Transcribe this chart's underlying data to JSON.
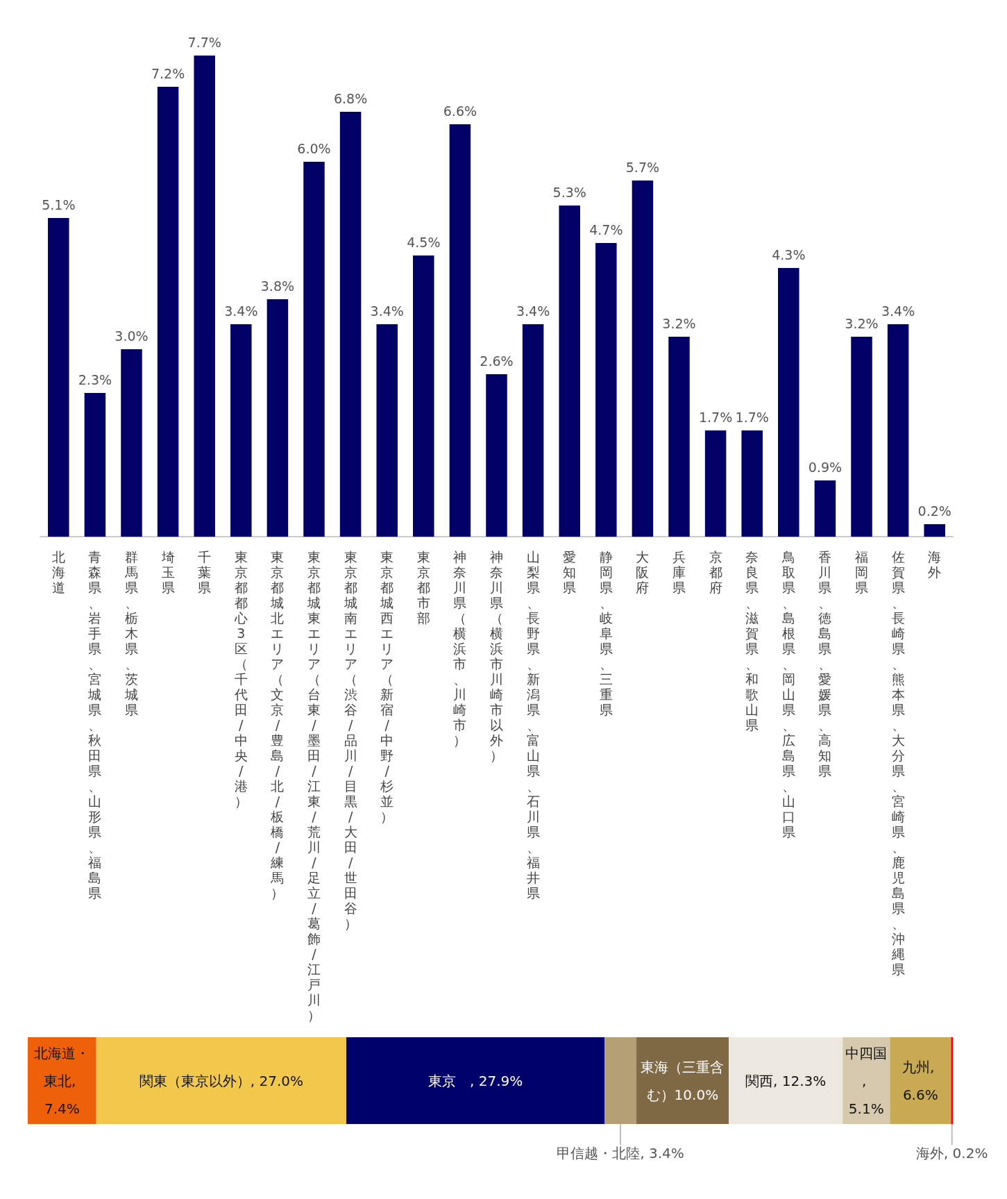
{
  "chart_data": [
    {
      "type": "bar",
      "color": "#000066",
      "grid": false,
      "categories": [
        "北海道",
        "青森県、岩手県、宮城県、秋田県、山形県、福島県",
        "群馬県、栃木県、茨城県",
        "埼玉県",
        "千葉県",
        "東京都都心3区（千代田/中央/港）",
        "東京都城北エリア（文京/豊島/北/板橋/練馬）",
        "東京都城東エリア（台東/墨田/江東/荒川/足立/葛飾/江戸川）",
        "東京都城南エリア（渋谷/品川/目黒/大田/世田谷）",
        "東京都城西エリア（新宿/中野/杉並）",
        "東京都市部",
        "神奈川県（横浜市、川崎市）",
        "神奈川県（横浜市川崎市以外）",
        "山梨県、長野県、新潟県、富山県、石川県、福井県",
        "愛知県",
        "静岡県、岐阜県、三重県",
        "大阪府",
        "兵庫県",
        "京都府",
        "奈良県、滋賀県、和歌山県",
        "鳥取県、島根県、岡山県、広島県、山口県",
        "香川県、徳島県、愛媛県、高知県",
        "福岡県",
        "佐賀県、長崎県、熊本県、大分県、宮崎県、鹿児島県、沖縄県",
        "海外"
      ],
      "values": [
        5.1,
        2.3,
        3.0,
        7.2,
        7.7,
        3.4,
        3.8,
        6.0,
        6.8,
        3.4,
        4.5,
        6.6,
        2.6,
        3.4,
        5.3,
        4.7,
        5.7,
        3.2,
        1.7,
        1.7,
        4.3,
        0.9,
        3.2,
        3.4,
        0.2
      ],
      "value_labels": [
        "5.1%",
        "2.3%",
        "3.0%",
        "7.2%",
        "7.7%",
        "3.4%",
        "3.8%",
        "6.0%",
        "6.8%",
        "3.4%",
        "4.5%",
        "6.6%",
        "2.6%",
        "3.4%",
        "5.3%",
        "4.7%",
        "5.7%",
        "3.2%",
        "1.7%",
        "1.7%",
        "4.3%",
        "0.9%",
        "3.2%",
        "3.4%",
        "0.2%"
      ]
    },
    {
      "type": "bar",
      "orientation": "horizontal",
      "stacked": true,
      "categories": [
        null
      ],
      "series": [
        {
          "color": "#ee6108",
          "values": [
            7.4
          ],
          "value_labels": [
            "北海道・東北, 7.4%"
          ]
        },
        {
          "color": "#f1c84c",
          "values": [
            27.0
          ],
          "value_labels": [
            "関東（東京以外）, 27.0%"
          ]
        },
        {
          "color": "#00006b",
          "values": [
            27.9
          ],
          "value_labels": [
            "東京　, 27.9%"
          ]
        },
        {
          "color": "#b5a075",
          "values": [
            3.4
          ],
          "value_labels": [
            "甲信越・北陸, 3.4%"
          ]
        },
        {
          "color": "#7f6a45",
          "values": [
            10.0
          ],
          "value_labels": [
            "東海（三重含む）10.0%"
          ]
        },
        {
          "color": "#ede8df",
          "values": [
            12.3
          ],
          "value_labels": [
            "関西, 12.3%"
          ]
        },
        {
          "color": "#d6c9ad",
          "values": [
            5.1
          ],
          "value_labels": [
            "中四国, 5.1%"
          ]
        },
        {
          "color": "#c8aa55",
          "values": [
            6.6
          ],
          "value_labels": [
            "九州, 6.6%"
          ]
        },
        {
          "color": "#ff0000",
          "values": [
            0.2
          ],
          "value_labels": [
            "海外, 0.2%"
          ]
        }
      ]
    }
  ]
}
